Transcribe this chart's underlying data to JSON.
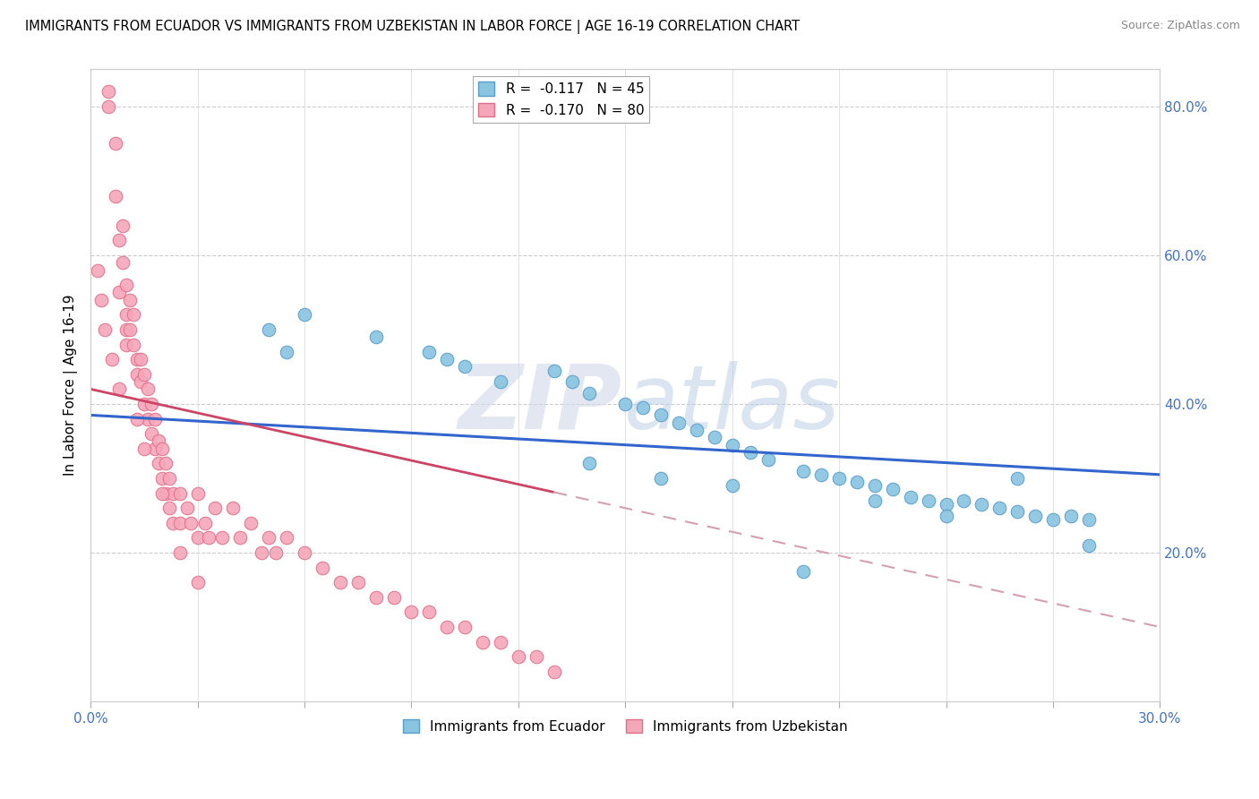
{
  "title": "IMMIGRANTS FROM ECUADOR VS IMMIGRANTS FROM UZBEKISTAN IN LABOR FORCE | AGE 16-19 CORRELATION CHART",
  "source": "Source: ZipAtlas.com",
  "ylabel": "In Labor Force | Age 16-19",
  "xlim": [
    0.0,
    0.3
  ],
  "ylim": [
    0.0,
    0.85
  ],
  "yticks_right": [
    0.2,
    0.4,
    0.6,
    0.8
  ],
  "ytick_right_labels": [
    "20.0%",
    "40.0%",
    "60.0%",
    "80.0%"
  ],
  "ecuador_color": "#89c4e1",
  "uzbekistan_color": "#f4a7b9",
  "ecuador_edge": "#5b9ec9",
  "uzbekistan_edge": "#e0708a",
  "trend_ecuador_color": "#3366cc",
  "trend_uzbekistan_solid_color": "#cc4466",
  "trend_uzbekistan_dash_color": "#d4a0b0",
  "legend_ecuador_label": "R =  -0.117   N = 45",
  "legend_uzbekistan_label": "R =  -0.170   N = 80",
  "legend_bottom_ecuador": "Immigrants from Ecuador",
  "legend_bottom_uzbekistan": "Immigrants from Uzbekistan",
  "ecuador_x": [
    0.055,
    0.08,
    0.095,
    0.1,
    0.105,
    0.115,
    0.13,
    0.135,
    0.14,
    0.15,
    0.155,
    0.16,
    0.165,
    0.17,
    0.175,
    0.18,
    0.185,
    0.19,
    0.2,
    0.205,
    0.21,
    0.215,
    0.22,
    0.225,
    0.23,
    0.235,
    0.24,
    0.245,
    0.25,
    0.255,
    0.26,
    0.265,
    0.27,
    0.275,
    0.28,
    0.14,
    0.16,
    0.18,
    0.2,
    0.22,
    0.24,
    0.26,
    0.28,
    0.05,
    0.06
  ],
  "ecuador_y": [
    0.47,
    0.49,
    0.47,
    0.46,
    0.45,
    0.43,
    0.445,
    0.43,
    0.415,
    0.4,
    0.395,
    0.385,
    0.375,
    0.365,
    0.355,
    0.345,
    0.335,
    0.325,
    0.31,
    0.305,
    0.3,
    0.295,
    0.29,
    0.285,
    0.275,
    0.27,
    0.265,
    0.27,
    0.265,
    0.26,
    0.255,
    0.25,
    0.245,
    0.25,
    0.245,
    0.32,
    0.3,
    0.29,
    0.175,
    0.27,
    0.25,
    0.3,
    0.21,
    0.5,
    0.52
  ],
  "uzbekistan_x": [
    0.005,
    0.005,
    0.007,
    0.007,
    0.008,
    0.008,
    0.009,
    0.009,
    0.01,
    0.01,
    0.01,
    0.01,
    0.011,
    0.011,
    0.012,
    0.012,
    0.013,
    0.013,
    0.014,
    0.014,
    0.015,
    0.015,
    0.016,
    0.016,
    0.017,
    0.017,
    0.018,
    0.018,
    0.019,
    0.019,
    0.02,
    0.02,
    0.021,
    0.021,
    0.022,
    0.022,
    0.023,
    0.023,
    0.025,
    0.025,
    0.027,
    0.028,
    0.03,
    0.03,
    0.032,
    0.033,
    0.035,
    0.037,
    0.04,
    0.042,
    0.045,
    0.048,
    0.05,
    0.052,
    0.055,
    0.06,
    0.065,
    0.07,
    0.075,
    0.08,
    0.085,
    0.09,
    0.095,
    0.1,
    0.105,
    0.11,
    0.115,
    0.12,
    0.125,
    0.13,
    0.002,
    0.003,
    0.004,
    0.006,
    0.013,
    0.015,
    0.008,
    0.02,
    0.025,
    0.03
  ],
  "uzbekistan_y": [
    0.82,
    0.8,
    0.75,
    0.68,
    0.62,
    0.55,
    0.64,
    0.59,
    0.56,
    0.52,
    0.5,
    0.48,
    0.54,
    0.5,
    0.52,
    0.48,
    0.46,
    0.44,
    0.46,
    0.43,
    0.44,
    0.4,
    0.42,
    0.38,
    0.4,
    0.36,
    0.38,
    0.34,
    0.35,
    0.32,
    0.34,
    0.3,
    0.32,
    0.28,
    0.3,
    0.26,
    0.28,
    0.24,
    0.28,
    0.24,
    0.26,
    0.24,
    0.28,
    0.22,
    0.24,
    0.22,
    0.26,
    0.22,
    0.26,
    0.22,
    0.24,
    0.2,
    0.22,
    0.2,
    0.22,
    0.2,
    0.18,
    0.16,
    0.16,
    0.14,
    0.14,
    0.12,
    0.12,
    0.1,
    0.1,
    0.08,
    0.08,
    0.06,
    0.06,
    0.04,
    0.58,
    0.54,
    0.5,
    0.46,
    0.38,
    0.34,
    0.42,
    0.28,
    0.2,
    0.16
  ]
}
